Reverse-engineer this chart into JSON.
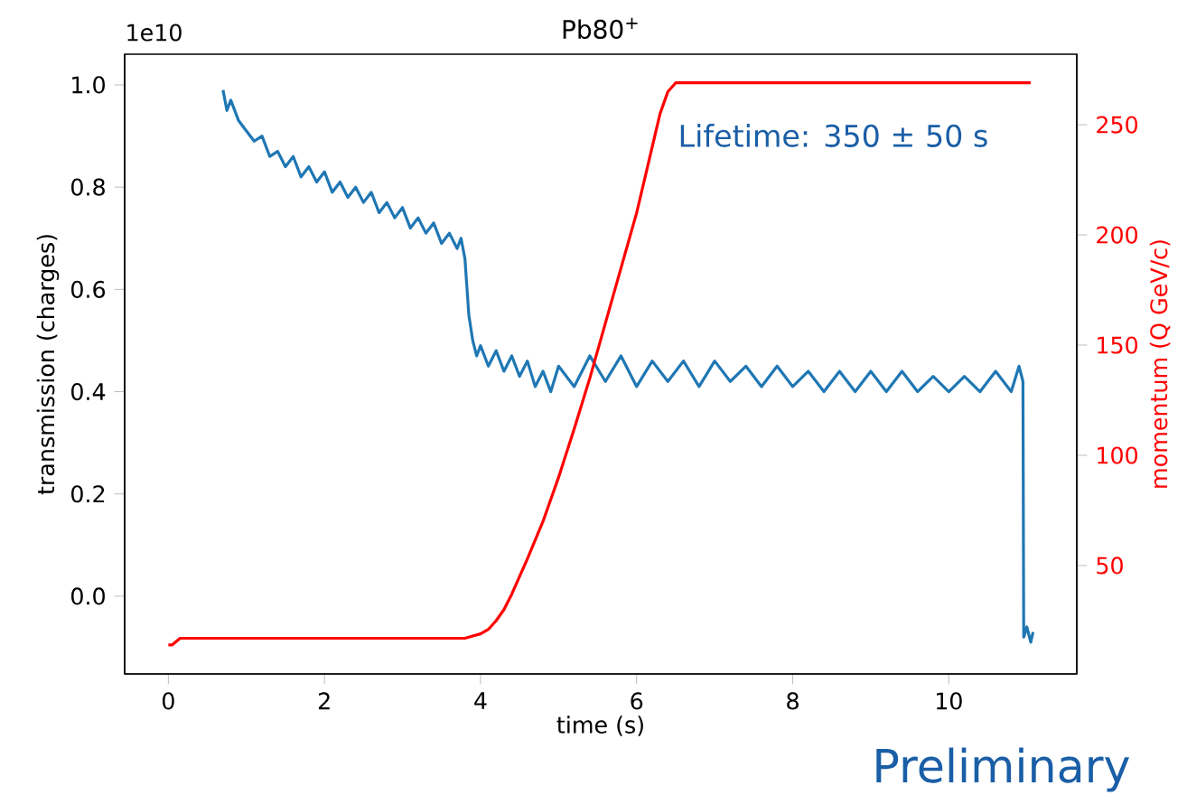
{
  "chart_data": {
    "type": "line",
    "title": "Pb80$^{+}$",
    "xlabel": "time (s)",
    "ylabel": "transmission (charges)",
    "y2label": "momentum (Q GeV/c)",
    "annotations": [
      "1e10",
      "Lifetime: 350 ± 50 s",
      "Preliminary"
    ],
    "xlim": [
      -0.56,
      11.64
    ],
    "ylim": [
      -0.152,
      1.06
    ],
    "y2lim": [
      0.8,
      282
    ],
    "xticks": [
      0,
      2,
      4,
      6,
      8,
      10
    ],
    "yticks": [
      {
        "value": 0,
        "label": "0.0"
      },
      {
        "value": 0.2,
        "label": "0.2"
      },
      {
        "value": 0.4,
        "label": "0.4"
      },
      {
        "value": 0.6,
        "label": "0.6"
      },
      {
        "value": 0.8,
        "label": "0.8"
      },
      {
        "value": 1.0,
        "label": "1.0"
      }
    ],
    "y2ticks": [
      50,
      100,
      150,
      200,
      250
    ],
    "series": [
      {
        "color": "#1f77b4",
        "x": [
          0.7,
          0.75,
          0.8,
          0.9,
          1.0,
          1.1,
          1.2,
          1.3,
          1.4,
          1.5,
          1.6,
          1.7,
          1.8,
          1.9,
          2.0,
          2.1,
          2.2,
          2.3,
          2.4,
          2.5,
          2.6,
          2.7,
          2.8,
          2.9,
          3.0,
          3.1,
          3.2,
          3.3,
          3.4,
          3.5,
          3.6,
          3.7,
          3.75,
          3.8,
          3.85,
          3.9,
          3.95,
          4.0,
          4.1,
          4.2,
          4.3,
          4.4,
          4.5,
          4.6,
          4.7,
          4.8,
          4.9,
          5.0,
          5.2,
          5.4,
          5.6,
          5.8,
          6.0,
          6.2,
          6.4,
          6.6,
          6.8,
          7.0,
          7.2,
          7.4,
          7.6,
          7.8,
          8.0,
          8.2,
          8.4,
          8.6,
          8.8,
          9.0,
          9.2,
          9.4,
          9.6,
          9.8,
          10.0,
          10.2,
          10.4,
          10.6,
          10.8,
          10.9,
          10.95,
          10.96,
          11.0,
          11.05,
          11.08
        ],
        "values": [
          0.99,
          0.95,
          0.97,
          0.93,
          0.91,
          0.89,
          0.9,
          0.86,
          0.87,
          0.84,
          0.86,
          0.82,
          0.84,
          0.81,
          0.83,
          0.79,
          0.81,
          0.78,
          0.8,
          0.77,
          0.79,
          0.75,
          0.77,
          0.74,
          0.76,
          0.72,
          0.74,
          0.71,
          0.73,
          0.69,
          0.71,
          0.68,
          0.7,
          0.66,
          0.55,
          0.5,
          0.47,
          0.49,
          0.45,
          0.48,
          0.44,
          0.47,
          0.43,
          0.46,
          0.41,
          0.44,
          0.4,
          0.45,
          0.41,
          0.47,
          0.42,
          0.47,
          0.41,
          0.46,
          0.42,
          0.46,
          0.41,
          0.46,
          0.42,
          0.45,
          0.41,
          0.45,
          0.41,
          0.44,
          0.4,
          0.44,
          0.4,
          0.44,
          0.4,
          0.44,
          0.4,
          0.43,
          0.4,
          0.43,
          0.4,
          0.44,
          0.4,
          0.45,
          0.42,
          -0.08,
          -0.06,
          -0.09,
          -0.07
        ]
      },
      {
        "color": "#ff0000",
        "axis": "y2",
        "x": [
          0.0,
          0.05,
          0.15,
          1.0,
          2.0,
          3.0,
          3.6,
          3.8,
          3.9,
          4.0,
          4.1,
          4.2,
          4.3,
          4.4,
          4.5,
          4.6,
          4.8,
          5.0,
          5.2,
          5.4,
          5.6,
          5.8,
          6.0,
          6.1,
          6.2,
          6.3,
          6.4,
          6.5,
          8.0,
          10.0,
          11.05
        ],
        "values": [
          14,
          14,
          17,
          17,
          17,
          17,
          17,
          17,
          18,
          19,
          21,
          25,
          30,
          37,
          45,
          53,
          70,
          90,
          112,
          135,
          160,
          185,
          210,
          225,
          240,
          255,
          265,
          269,
          269,
          269,
          269
        ]
      }
    ]
  }
}
